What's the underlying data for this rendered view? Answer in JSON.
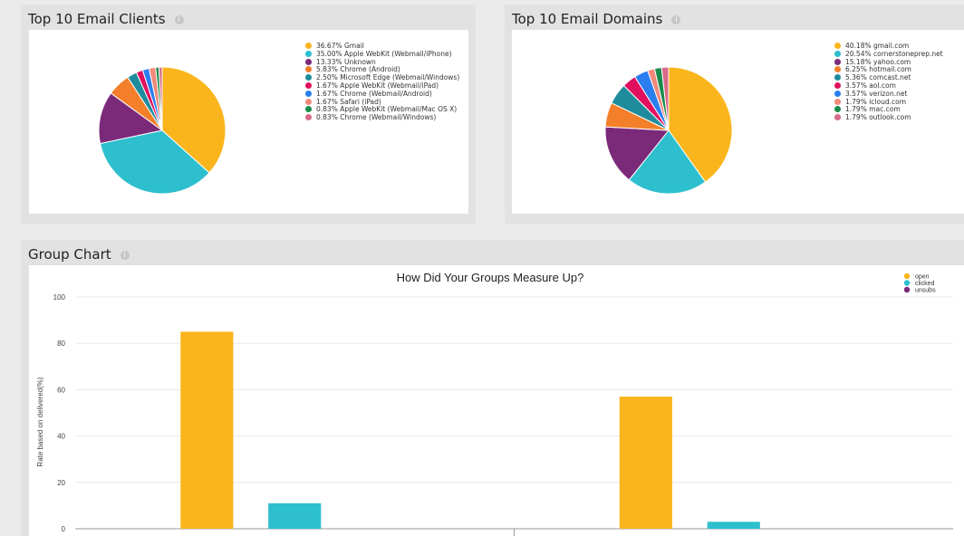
{
  "panels": {
    "clients": {
      "title": "Top 10 Email Clients",
      "info_icon": "info-icon"
    },
    "domains": {
      "title": "Top 10 Email Domains",
      "info_icon": "info-icon"
    },
    "group": {
      "title": "Group Chart",
      "info_icon": "info-icon"
    }
  },
  "chart_data": [
    {
      "type": "pie",
      "labels": [
        "36.67% Gmail",
        "35.00% Apple WebKit (Webmail/iPhone)",
        "13.33% Unknown",
        "5.83% Chrome (Android)",
        "2.50% Microsoft Edge (Webmail/Windows)",
        "1.67% Apple WebKit (Webmail/iPad)",
        "1.67% Chrome (Webmail/Android)",
        "1.67% Safari (iPad)",
        "0.83% Apple WebKit (Webmail/Mac OS X)",
        "0.83% Chrome (Webmail/Windows)"
      ],
      "values": [
        36.67,
        35.0,
        13.33,
        5.83,
        2.5,
        1.67,
        1.67,
        1.67,
        0.83,
        0.83
      ],
      "colors": [
        "#fbb51c",
        "#2dbfce",
        "#7b2a7a",
        "#f47f2b",
        "#1e8c9c",
        "#e0105f",
        "#2b7ef0",
        "#f08a7a",
        "#1a8a4a",
        "#d86a8a"
      ],
      "legend": "right"
    },
    {
      "type": "pie",
      "labels": [
        "40.18% gmail.com",
        "20.54% cornerstoneprep.net",
        "15.18% yahoo.com",
        "6.25% hotmail.com",
        "5.36% comcast.net",
        "3.57% aol.com",
        "3.57% verizon.net",
        "1.79% icloud.com",
        "1.79% mac.com",
        "1.79% outlook.com"
      ],
      "values": [
        40.18,
        20.54,
        15.18,
        6.25,
        5.36,
        3.57,
        3.57,
        1.79,
        1.79,
        1.79
      ],
      "colors": [
        "#fbb51c",
        "#2dbfce",
        "#7b2a7a",
        "#f47f2b",
        "#1e8c9c",
        "#e0105f",
        "#2b7ef0",
        "#f08a7a",
        "#1a8a4a",
        "#d86a8a"
      ],
      "legend": "right"
    },
    {
      "type": "bar",
      "title": "How Did Your Groups Measure Up?",
      "ylabel": "Rate based on delivered(%)",
      "ylim": [
        0,
        100
      ],
      "yticks": [
        "0",
        "20",
        "40",
        "60",
        "80",
        "100"
      ],
      "grid": true,
      "legend": "top-right",
      "groups": 2,
      "series": [
        {
          "name": "open",
          "color": "#fbb51c",
          "values": [
            85,
            57
          ]
        },
        {
          "name": "clicked",
          "color": "#2dbfce",
          "values": [
            11,
            3
          ]
        },
        {
          "name": "unsubs",
          "color": "#7b2a7a",
          "values": [
            0,
            0
          ]
        }
      ]
    }
  ]
}
